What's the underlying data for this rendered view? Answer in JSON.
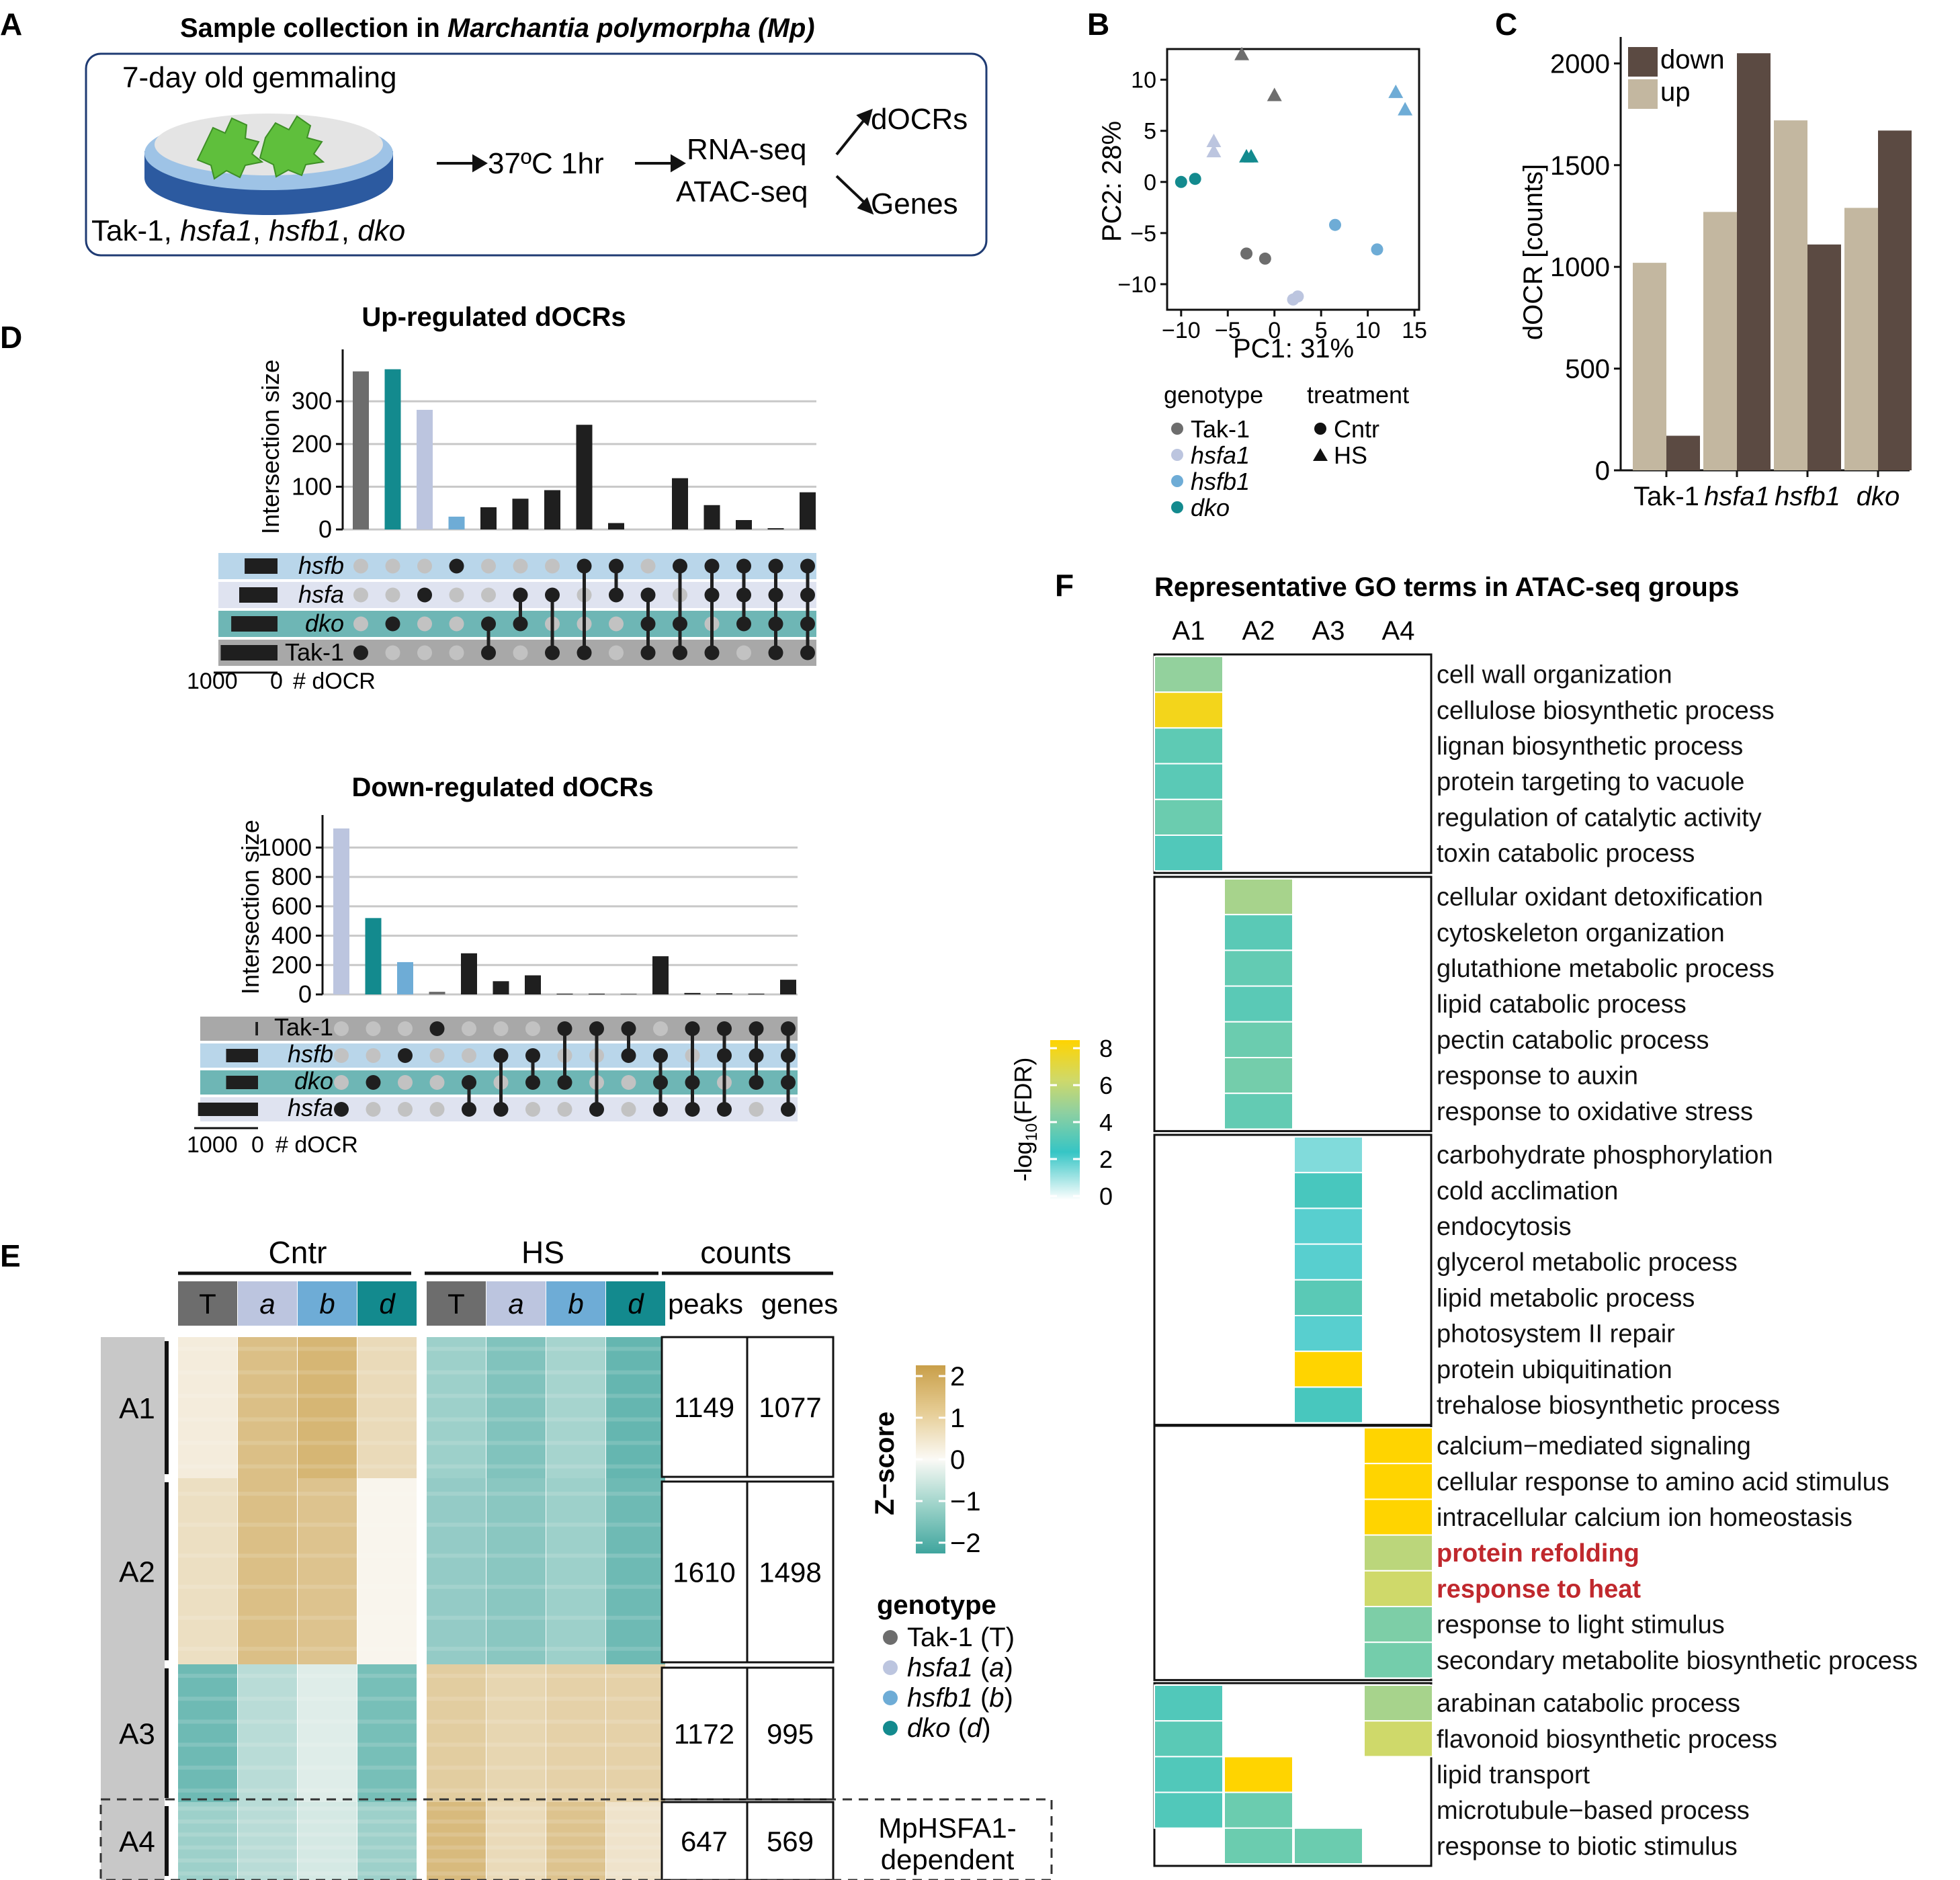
{
  "colors": {
    "tak1": "#6d6d6d",
    "hsfa1": "#bcc5df",
    "hsfb1": "#6eacd6",
    "dko": "#138a8e",
    "bar_black": "#1f1f1f",
    "down": "#5b4a42",
    "up": "#c3b7a0",
    "band_hsfb": "#b9d6ea",
    "band_hsfa": "#dfe3f0",
    "band_dko": "#6eb6b5",
    "band_tak": "#a8a8a8",
    "highlight_red": "#c0282d",
    "heat_low": "#ffffff",
    "heat_mid": "#36c5c5",
    "heat_high": "#ffd400"
  },
  "panelA": {
    "letter": "A",
    "title_prefix": "Sample collection in ",
    "title_italic": "Marchantia polymorpha (Mp)",
    "gemmaling": "7-day old gemmaling",
    "treatment": "37ºC 1hr",
    "rnaseq": "RNA-seq",
    "atacseq": "ATAC-seq",
    "docrs": "dOCRs",
    "genes": "Genes",
    "lines": [
      "Tak-1, ",
      "hsfa1",
      ", ",
      "hsfb1",
      ", ",
      "dko"
    ]
  },
  "panelB": {
    "letter": "B",
    "xlabel": "PC1: 31%",
    "ylabel": "PC2: 28%",
    "xticks": [
      -10,
      -5,
      0,
      5,
      10,
      15
    ],
    "xtick_labels": [
      "−10",
      "−5",
      "0",
      "5",
      "10",
      "15"
    ],
    "yticks": [
      10,
      5,
      0,
      -5,
      -10
    ],
    "ytick_labels": [
      "10",
      "5",
      "0",
      "−5",
      "−10"
    ],
    "legend_genotype_title": "genotype",
    "legend_treatment_title": "treatment",
    "legend_genotypes": [
      "Tak-1",
      "hsfa1",
      "hsfb1",
      "dko"
    ],
    "legend_treatments": [
      "Cntr",
      "HS"
    ]
  },
  "panelC": {
    "letter": "C",
    "ylabel": "dOCR [counts]",
    "yticks": [
      0,
      500,
      1000,
      1500,
      2000
    ],
    "categories": [
      "Tak-1",
      "hsfa1",
      "hsfb1",
      "dko"
    ],
    "legend": [
      "down",
      "up"
    ]
  },
  "panelD": {
    "letter": "D",
    "up_title": "Up-regulated dOCRs",
    "down_title": "Down-regulated dOCRs",
    "ylabel": "Intersection size",
    "up_yticks": [
      0,
      100,
      200,
      300
    ],
    "down_yticks": [
      0,
      200,
      400,
      600,
      800,
      1000
    ],
    "up_sets": [
      "hsfb",
      "hsfa",
      "dko",
      "Tak-1"
    ],
    "down_sets": [
      "Tak-1",
      "hsfb",
      "dko",
      "hsfa"
    ],
    "setsize_label_up": "1000",
    "setsize_zero": "0",
    "setsize_unit": "# dOCR"
  },
  "panelE": {
    "letter": "E",
    "cntr": "Cntr",
    "hs": "HS",
    "counts": "counts",
    "peaks": "peaks",
    "genes": "genes",
    "col_letters": [
      "T",
      "a",
      "b",
      "d",
      "T",
      "a",
      "b",
      "d"
    ],
    "clusters": [
      {
        "name": "A1",
        "peaks": "1149",
        "genes": "1077"
      },
      {
        "name": "A2",
        "peaks": "1610",
        "genes": "1498"
      },
      {
        "name": "A3",
        "peaks": "1172",
        "genes": "995"
      },
      {
        "name": "A4",
        "peaks": "647",
        "genes": "569"
      }
    ],
    "zscore_title": "Z−score",
    "zscore_ticks": [
      "2",
      "1",
      "0",
      "−1",
      "−2"
    ],
    "genotype_title": "genotype",
    "genotype_legend": [
      {
        "name": "Tak-1",
        "abbr": "T"
      },
      {
        "name": "hsfa1",
        "abbr": "a"
      },
      {
        "name": "hsfb1",
        "abbr": "b"
      },
      {
        "name": "dko",
        "abbr": "d"
      }
    ],
    "dependent_1": "MpHSFA1-",
    "dependent_2": "dependent"
  },
  "panelF": {
    "letter": "F",
    "title": "Representative GO terms in ATAC-seq groups",
    "columns": [
      "A1",
      "A2",
      "A3",
      "A4"
    ],
    "scale_ticks": [
      "8",
      "6",
      "4",
      "2",
      "0"
    ],
    "scale_title_a": "-log",
    "scale_title_sub": "10",
    "scale_title_b": "(FDR)",
    "groups": [
      {
        "col": 0,
        "terms": [
          {
            "label": "cell wall organization",
            "v": 4.5
          },
          {
            "label": "cellulose biosynthetic process",
            "v": 7.5
          },
          {
            "label": "lignan biosynthetic process",
            "v": 3.3
          },
          {
            "label": "protein targeting to vacuole",
            "v": 3.2
          },
          {
            "label": "regulation of catalytic activity",
            "v": 3.6
          },
          {
            "label": "toxin catabolic process",
            "v": 3.0
          }
        ]
      },
      {
        "col": 1,
        "terms": [
          {
            "label": "cellular oxidant detoxification",
            "v": 5.0
          },
          {
            "label": "cytoskeleton organization",
            "v": 3.2
          },
          {
            "label": "glutathione metabolic process",
            "v": 3.4
          },
          {
            "label": "lipid catabolic process",
            "v": 3.2
          },
          {
            "label": "pectin catabolic process",
            "v": 3.6
          },
          {
            "label": "response to auxin",
            "v": 3.8
          },
          {
            "label": "response to oxidative stress",
            "v": 3.4
          }
        ]
      },
      {
        "col": 2,
        "terms": [
          {
            "label": "carbohydrate phosphorylation",
            "v": 1.5
          },
          {
            "label": "cold acclimation",
            "v": 2.8
          },
          {
            "label": "endocytosis",
            "v": 2.0
          },
          {
            "label": "glycerol metabolic process",
            "v": 2.0
          },
          {
            "label": "lipid metabolic process",
            "v": 3.2
          },
          {
            "label": "photosystem II repair",
            "v": 2.0
          },
          {
            "label": "protein ubiquitination",
            "v": 8.0
          },
          {
            "label": "trehalose biosynthetic process",
            "v": 2.8
          }
        ]
      },
      {
        "col": 3,
        "terms": [
          {
            "label": "calcium−mediated signaling",
            "v": 8.0
          },
          {
            "label": "cellular response to amino acid stimulus",
            "v": 8.0
          },
          {
            "label": "intracellular calcium ion homeostasis",
            "v": 8.0
          },
          {
            "label": "protein refolding",
            "v": 5.5,
            "highlight": true
          },
          {
            "label": "response to heat",
            "v": 6.0,
            "highlight": true
          },
          {
            "label": "response to light stimulus",
            "v": 4.0
          },
          {
            "label": "secondary metabolite biosynthetic process",
            "v": 3.8
          }
        ]
      },
      {
        "col": -1,
        "terms": [
          {
            "label": "arabinan catabolic process",
            "cells": [
              3.0,
              null,
              null,
              5.0
            ]
          },
          {
            "label": "flavonoid biosynthetic process",
            "cells": [
              3.2,
              null,
              null,
              6.0
            ]
          },
          {
            "label": "lipid transport",
            "cells": [
              3.0,
              8.0,
              null,
              null
            ]
          },
          {
            "label": "microtubule−based process",
            "cells": [
              3.0,
              3.6,
              null,
              null
            ]
          },
          {
            "label": "response to biotic stimulus",
            "cells": [
              null,
              3.6,
              3.6,
              null
            ]
          }
        ]
      }
    ]
  },
  "chart_data": [
    {
      "type": "scatter",
      "xlabel": "PC1: 31%",
      "ylabel": "PC2: 28%",
      "xlim": [
        -11.5,
        15.5
      ],
      "ylim": [
        -12.5,
        13
      ],
      "series": [
        {
          "name": "Tak-1",
          "treatment": "Cntr",
          "points": [
            [
              -3,
              -7
            ],
            [
              -1,
              -7.5
            ]
          ]
        },
        {
          "name": "Tak-1",
          "treatment": "HS",
          "points": [
            [
              -3.5,
              12.5
            ],
            [
              0,
              8.5
            ]
          ]
        },
        {
          "name": "hsfa1",
          "treatment": "Cntr",
          "points": [
            [
              2,
              -11.5
            ],
            [
              2.5,
              -11.2
            ]
          ]
        },
        {
          "name": "hsfa1",
          "treatment": "HS",
          "points": [
            [
              -6.5,
              4
            ],
            [
              -6.5,
              3
            ]
          ]
        },
        {
          "name": "hsfb1",
          "treatment": "Cntr",
          "points": [
            [
              6.5,
              -4.2
            ],
            [
              11,
              -6.6
            ]
          ]
        },
        {
          "name": "hsfb1",
          "treatment": "HS",
          "points": [
            [
              13,
              8.8
            ],
            [
              14,
              7.1
            ]
          ]
        },
        {
          "name": "dko",
          "treatment": "Cntr",
          "points": [
            [
              -10,
              0
            ],
            [
              -8.5,
              0.3
            ]
          ]
        },
        {
          "name": "dko",
          "treatment": "HS",
          "points": [
            [
              -3,
              2.5
            ],
            [
              -2.5,
              2.5
            ]
          ]
        }
      ]
    },
    {
      "type": "bar",
      "ylabel": "dOCR [counts]",
      "categories": [
        "Tak-1",
        "hsfa1",
        "hsfb1",
        "dko"
      ],
      "ylim": [
        0,
        2130
      ],
      "series": [
        {
          "name": "up",
          "values": [
            1020,
            1270,
            1720,
            1290
          ]
        },
        {
          "name": "down",
          "values": [
            170,
            2050,
            1110,
            1670
          ]
        }
      ]
    },
    {
      "type": "bar",
      "title": "Up-regulated dOCRs",
      "ylabel": "Intersection size",
      "ylim": [
        0,
        390
      ],
      "sets": [
        "hsfb",
        "hsfa",
        "dko",
        "Tak-1"
      ],
      "set_sizes": [
        1030,
        1200,
        1450,
        1780
      ],
      "values": [
        370,
        375,
        280,
        30,
        52,
        72,
        92,
        245,
        15,
        0,
        120,
        57,
        22,
        3,
        87
      ],
      "membership": [
        [
          "Tak-1"
        ],
        [
          "dko"
        ],
        [
          "hsfa"
        ],
        [
          "hsfb"
        ],
        [
          "dko",
          "Tak-1"
        ],
        [
          "hsfa",
          "dko"
        ],
        [
          "hsfa",
          "Tak-1"
        ],
        [
          "hsfb",
          "Tak-1"
        ],
        [
          "hsfb",
          "hsfa"
        ],
        [
          "hsfa",
          "dko",
          "Tak-1"
        ],
        [
          "hsfb",
          "dko",
          "Tak-1"
        ],
        [
          "hsfb",
          "hsfa",
          "Tak-1"
        ],
        [
          "hsfb",
          "hsfa",
          "dko"
        ],
        [
          "hsfb",
          "hsfa",
          "dko",
          "Tak-1"
        ],
        [
          "hsfb",
          "hsfa",
          "dko",
          "Tak-1"
        ]
      ]
    },
    {
      "type": "bar",
      "title": "Down-regulated dOCRs",
      "ylabel": "Intersection size",
      "ylim": [
        0,
        1130
      ],
      "sets": [
        "Tak-1",
        "hsfb",
        "dko",
        "hsfa"
      ],
      "set_sizes": [
        80,
        1000,
        1000,
        1880
      ],
      "values": [
        1130,
        520,
        220,
        18,
        280,
        90,
        130,
        5,
        5,
        3,
        260,
        10,
        8,
        5,
        100
      ],
      "membership": [
        [
          "hsfa"
        ],
        [
          "dko"
        ],
        [
          "hsfb"
        ],
        [
          "Tak-1"
        ],
        [
          "dko",
          "hsfa"
        ],
        [
          "hsfb",
          "hsfa"
        ],
        [
          "hsfb",
          "dko"
        ],
        [
          "Tak-1",
          "dko"
        ],
        [
          "Tak-1",
          "hsfa"
        ],
        [
          "Tak-1",
          "hsfb"
        ],
        [
          "hsfb",
          "dko",
          "hsfa"
        ],
        [
          "Tak-1",
          "dko",
          "hsfa"
        ],
        [
          "Tak-1",
          "hsfb",
          "hsfa"
        ],
        [
          "Tak-1",
          "hsfb",
          "dko"
        ],
        [
          "Tak-1",
          "hsfb",
          "dko",
          "hsfa"
        ]
      ]
    },
    {
      "type": "heatmap",
      "columns": [
        "Cntr T",
        "Cntr a",
        "Cntr b",
        "Cntr d",
        "HS T",
        "HS a",
        "HS b",
        "HS d"
      ],
      "rows": [
        "A1",
        "A2",
        "A3",
        "A4"
      ],
      "values": [
        [
          0.3,
          1.3,
          1.5,
          0.7,
          -1.0,
          -1.3,
          -0.9,
          -1.6
        ],
        [
          0.6,
          1.3,
          1.2,
          0.1,
          -1.1,
          -1.2,
          -1.0,
          -1.5
        ],
        [
          -1.5,
          -0.7,
          -0.3,
          -1.4,
          1.0,
          0.8,
          0.9,
          0.9
        ],
        [
          -1.0,
          -0.7,
          -0.4,
          -1.0,
          1.4,
          0.7,
          1.2,
          0.5
        ]
      ],
      "zlim": [
        -2,
        2
      ]
    }
  ]
}
